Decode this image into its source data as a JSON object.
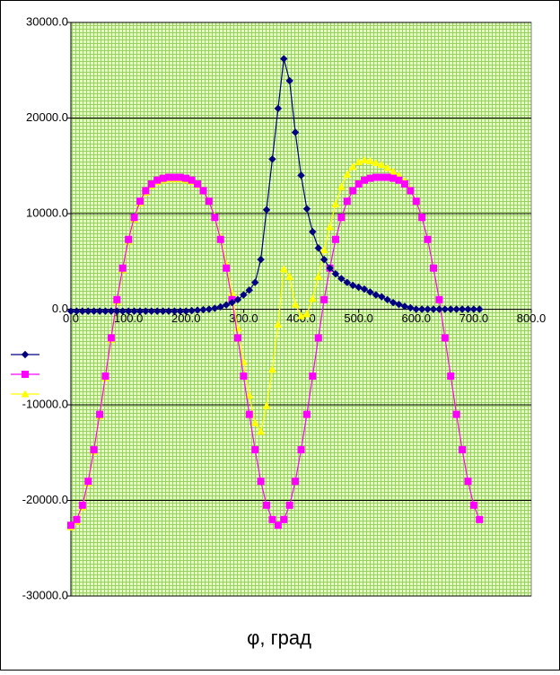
{
  "chart_data": {
    "type": "line",
    "x_label": "φ, град",
    "x": [
      0,
      10,
      20,
      30,
      40,
      50,
      60,
      70,
      80,
      90,
      100,
      110,
      120,
      130,
      140,
      150,
      160,
      170,
      180,
      190,
      200,
      210,
      220,
      230,
      240,
      250,
      260,
      270,
      280,
      290,
      300,
      310,
      320,
      330,
      340,
      350,
      360,
      370,
      380,
      390,
      400,
      410,
      420,
      430,
      440,
      450,
      460,
      470,
      480,
      490,
      500,
      510,
      520,
      530,
      540,
      550,
      560,
      570,
      580,
      590,
      600,
      610,
      620,
      630,
      640,
      650,
      660,
      670,
      680,
      690,
      700,
      710
    ],
    "series": [
      {
        "color": "#ffff00",
        "marker": "triangle",
        "values": [
          -22800,
          -22200,
          -20700,
          -18200,
          -14900,
          -11200,
          -7200,
          -3200,
          800,
          4100,
          7100,
          9400,
          11100,
          12200,
          12900,
          13300,
          13500,
          13600,
          13600,
          13600,
          13500,
          13350,
          13000,
          12350,
          11300,
          9700,
          7550,
          4750,
          1700,
          -2000,
          -5500,
          -9000,
          -11900,
          -12800,
          -10100,
          -6300,
          -1600,
          4200,
          3400,
          500,
          -700,
          -500,
          1100,
          3400,
          6200,
          8600,
          11000,
          12800,
          14100,
          14900,
          15400,
          15600,
          15500,
          15300,
          15100,
          14800,
          14400,
          14000,
          13400,
          12550,
          11300,
          9600,
          7300,
          4300,
          1000,
          -3000,
          -7000,
          -11000,
          -14700,
          -18000,
          -20500,
          -22000
        ]
      },
      {
        "color": "#ff00ff",
        "marker": "square",
        "values": [
          -22600,
          -22000,
          -20500,
          -18000,
          -14700,
          -11000,
          -7000,
          -3000,
          1000,
          4300,
          7300,
          9600,
          11300,
          12400,
          13100,
          13500,
          13700,
          13800,
          13800,
          13800,
          13700,
          13500,
          13100,
          12400,
          11300,
          9600,
          7300,
          4300,
          1000,
          -3000,
          -7000,
          -11000,
          -14700,
          -18000,
          -20500,
          -22000,
          -22600,
          -22000,
          -20500,
          -18000,
          -14700,
          -11000,
          -7000,
          -3000,
          1000,
          4300,
          7300,
          9600,
          11300,
          12400,
          13100,
          13500,
          13700,
          13800,
          13800,
          13800,
          13700,
          13500,
          13100,
          12400,
          11300,
          9600,
          7300,
          4300,
          1000,
          -3000,
          -7000,
          -11000,
          -14700,
          -18000,
          -20500,
          -22000
        ]
      },
      {
        "color": "#000080",
        "marker": "diamond",
        "values": [
          -200,
          -200,
          -200,
          -200,
          -200,
          -200,
          -200,
          -200,
          -200,
          -200,
          -200,
          -200,
          -200,
          -200,
          -200,
          -200,
          -200,
          -200,
          -200,
          -200,
          -200,
          -150,
          -100,
          -50,
          0,
          100,
          250,
          450,
          700,
          1000,
          1500,
          2000,
          2800,
          5200,
          10400,
          15700,
          21000,
          26200,
          23900,
          18500,
          14000,
          10500,
          8100,
          6400,
          5200,
          4300,
          3700,
          3200,
          2800,
          2500,
          2300,
          2100,
          1800,
          1500,
          1300,
          1000,
          700,
          500,
          300,
          150,
          0,
          0,
          0,
          0,
          0,
          0,
          0,
          0,
          0,
          0,
          0,
          0
        ]
      }
    ],
    "xlim": [
      0,
      800
    ],
    "xticks": [
      {
        "value": 0,
        "label": "0.0"
      },
      {
        "value": 100,
        "label": "100.0"
      },
      {
        "value": 200,
        "label": "200.0"
      },
      {
        "value": 300,
        "label": "300.0"
      },
      {
        "value": 400,
        "label": "400.0"
      },
      {
        "value": 500,
        "label": "500.0"
      },
      {
        "value": 600,
        "label": "600.0"
      },
      {
        "value": 700,
        "label": "700.0"
      },
      {
        "value": 800,
        "label": "800.0"
      }
    ],
    "ylim": [
      -30000,
      30000
    ],
    "yticks": [
      {
        "value": -30000,
        "label": "-30000.0"
      },
      {
        "value": -20000,
        "label": "-20000.0"
      },
      {
        "value": -10000,
        "label": "-10000.0"
      },
      {
        "value": 0,
        "label": "0.0"
      },
      {
        "value": 10000,
        "label": "10000.0"
      },
      {
        "value": 20000,
        "label": "20000.0"
      },
      {
        "value": 30000,
        "label": "30000.0"
      }
    ],
    "grid": true,
    "legend": "left"
  }
}
